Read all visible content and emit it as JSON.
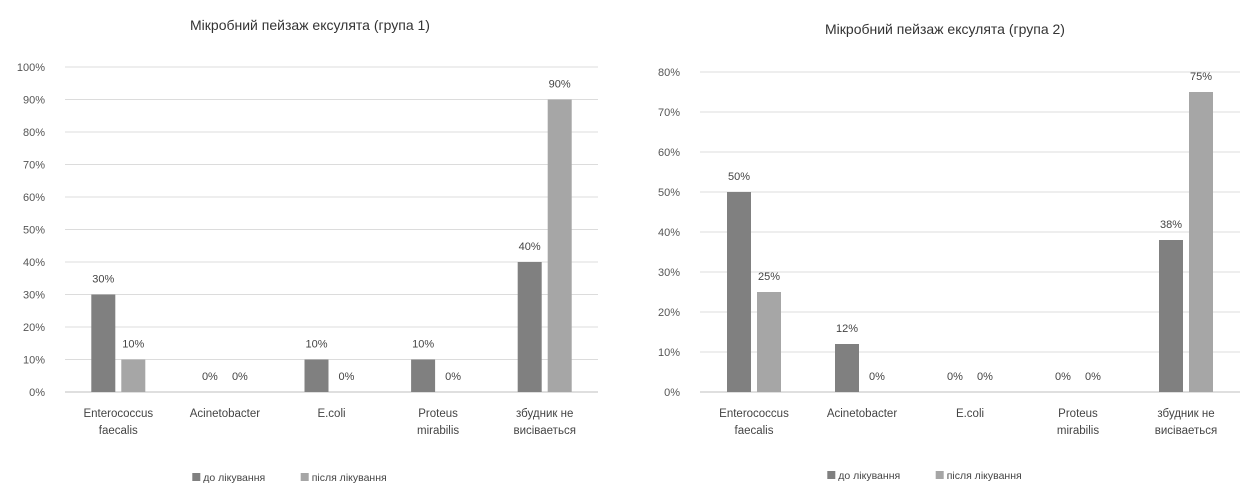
{
  "chart_data": [
    {
      "type": "bar",
      "title": "Мікробний пейзаж ексулята (група 1)",
      "categories": [
        [
          "Enterococcus",
          "faecalis"
        ],
        [
          "Acinetobacter"
        ],
        [
          "E.coli"
        ],
        [
          "Proteus",
          "mirabilis"
        ],
        [
          "збудник не",
          "висіваеться"
        ]
      ],
      "series": [
        {
          "name": "до лікування",
          "values": [
            30,
            0,
            10,
            10,
            40
          ],
          "labels": [
            "30%",
            "0%",
            "10%",
            "10%",
            "40%"
          ]
        },
        {
          "name": "після лікування",
          "values": [
            10,
            0,
            0,
            0,
            90
          ],
          "labels": [
            "10%",
            "0%",
            "0%",
            "0%",
            "90%"
          ]
        }
      ],
      "ylim": [
        0,
        100
      ],
      "yticks": [
        "0%",
        "10%",
        "20%",
        "30%",
        "40%",
        "50%",
        "60%",
        "70%",
        "80%",
        "90%",
        "100%"
      ],
      "grid": true,
      "legend": "bottom",
      "colors": [
        "#808080",
        "#a6a6a6"
      ]
    },
    {
      "type": "bar",
      "title": "Мікробний пейзаж ексулята (група 2)",
      "categories": [
        [
          "Enterococcus",
          "faecalis"
        ],
        [
          "Acinetobacter"
        ],
        [
          "E.coli"
        ],
        [
          "Proteus",
          "mirabilis"
        ],
        [
          "збудник не",
          "висіваеться"
        ]
      ],
      "series": [
        {
          "name": "до лікування",
          "values": [
            50,
            12,
            0,
            0,
            38
          ],
          "labels": [
            "50%",
            "12%",
            "0%",
            "0%",
            "38%"
          ]
        },
        {
          "name": "після лікування",
          "values": [
            25,
            0,
            0,
            0,
            75
          ],
          "labels": [
            "25%",
            "0%",
            "0%",
            "0%",
            "75%"
          ]
        }
      ],
      "ylim": [
        0,
        80
      ],
      "yticks": [
        "0%",
        "10%",
        "20%",
        "30%",
        "40%",
        "50%",
        "60%",
        "70%",
        "80%"
      ],
      "grid": true,
      "legend": "bottom",
      "colors": [
        "#808080",
        "#a6a6a6"
      ]
    }
  ]
}
